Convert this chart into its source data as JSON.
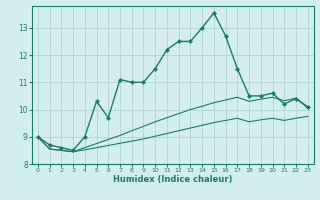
{
  "xlabel": "Humidex (Indice chaleur)",
  "x": [
    0,
    1,
    2,
    3,
    4,
    5,
    6,
    7,
    8,
    9,
    10,
    11,
    12,
    13,
    14,
    15,
    16,
    17,
    18,
    19,
    20,
    21,
    22,
    23
  ],
  "y_main": [
    9.0,
    8.7,
    8.6,
    8.5,
    9.0,
    10.3,
    9.7,
    11.1,
    11.0,
    11.0,
    11.5,
    12.2,
    12.5,
    12.5,
    13.0,
    13.55,
    12.7,
    11.5,
    10.5,
    10.5,
    10.6,
    10.2,
    10.4,
    10.1
  ],
  "y_low": [
    9.0,
    8.55,
    8.5,
    8.45,
    8.52,
    8.6,
    8.68,
    8.76,
    8.84,
    8.92,
    9.02,
    9.12,
    9.22,
    9.32,
    9.42,
    9.52,
    9.6,
    9.68,
    9.55,
    9.62,
    9.68,
    9.6,
    9.68,
    9.75
  ],
  "y_high": [
    9.0,
    8.55,
    8.5,
    8.45,
    8.6,
    8.75,
    8.9,
    9.05,
    9.22,
    9.38,
    9.55,
    9.7,
    9.85,
    10.0,
    10.12,
    10.25,
    10.35,
    10.45,
    10.3,
    10.38,
    10.45,
    10.32,
    10.42,
    10.05
  ],
  "line_color": "#1a7a6a",
  "bg_color": "#d4eeee",
  "grid_color": "#aed4d4",
  "ylim": [
    8.0,
    13.8
  ],
  "xlim": [
    -0.5,
    23.5
  ],
  "yticks": [
    8,
    9,
    10,
    11,
    12,
    13
  ],
  "xticks": [
    0,
    1,
    2,
    3,
    4,
    5,
    6,
    7,
    8,
    9,
    10,
    11,
    12,
    13,
    14,
    15,
    16,
    17,
    18,
    19,
    20,
    21,
    22,
    23
  ]
}
